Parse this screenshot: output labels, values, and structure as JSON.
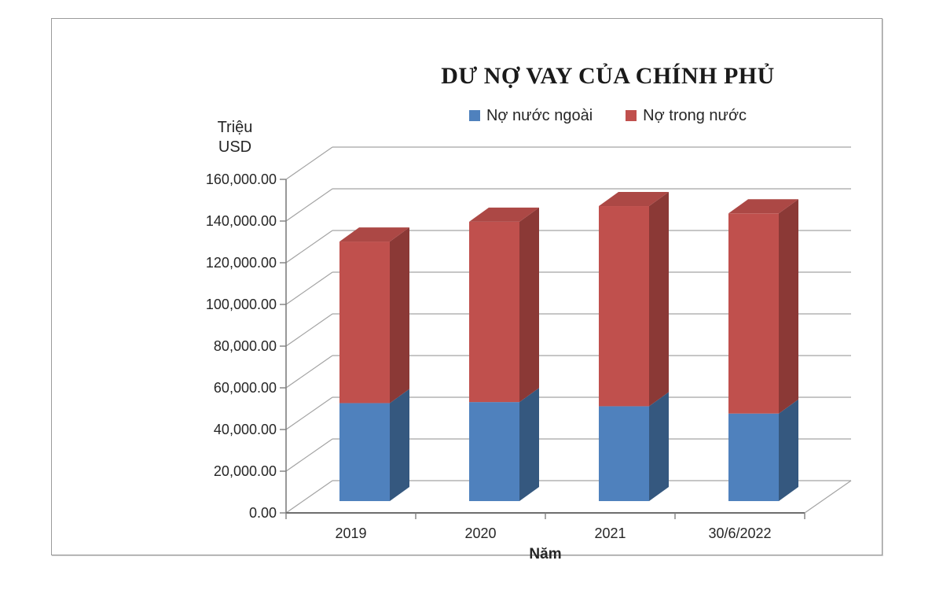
{
  "window": {
    "background": "#ffffff",
    "frame_border_color": "#9b9b9b"
  },
  "chart_data": {
    "type": "bar",
    "variant": "3d-stacked-column",
    "title": "DƯ NỢ VAY CỦA CHÍNH PHỦ",
    "y_axis_title": "Triệu\nUSD",
    "x_axis_title": "Năm",
    "categories": [
      "2019",
      "2020",
      "2021",
      "30/6/2022"
    ],
    "series": [
      {
        "name": "Nợ nước ngoài",
        "color": "#4F81BD",
        "side_color": "#35587F",
        "top_color": "#3E6DA3",
        "values": [
          47000,
          47500,
          45500,
          42000
        ]
      },
      {
        "name": "Nợ trong nước",
        "color": "#C0504D",
        "side_color": "#8B3936",
        "top_color": "#AC4845",
        "values": [
          77500,
          86500,
          96000,
          96000
        ]
      }
    ],
    "ylim": [
      0,
      160000
    ],
    "y_tick_step": 20000,
    "y_tick_labels": [
      "0.00",
      "20,000.00",
      "40,000.00",
      "60,000.00",
      "80,000.00",
      "100,000.00",
      "120,000.00",
      "140,000.00",
      "160,000.00"
    ],
    "legend_position": "top-center",
    "grid": true,
    "grid_color": "#a3a3a3",
    "axis_color": "#7f7f7f",
    "text_color": "#262626"
  }
}
